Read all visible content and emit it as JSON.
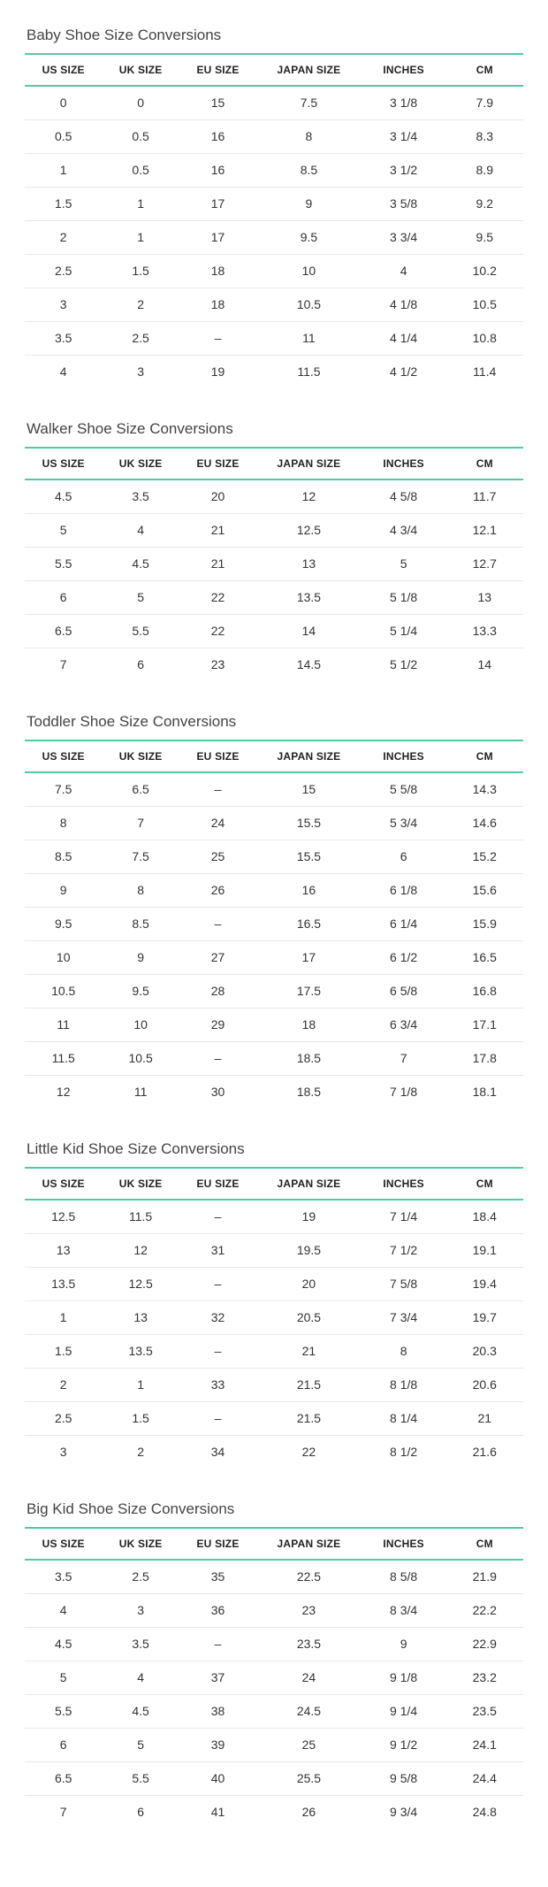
{
  "headers": [
    "US SIZE",
    "UK SIZE",
    "EU SIZE",
    "JAPAN SIZE",
    "INCHES",
    "CM"
  ],
  "sections": [
    {
      "title": "Baby Shoe Size Conversions",
      "rows": [
        [
          "0",
          "0",
          "15",
          "7.5",
          "3 1/8",
          "7.9"
        ],
        [
          "0.5",
          "0.5",
          "16",
          "8",
          "3 1/4",
          "8.3"
        ],
        [
          "1",
          "0.5",
          "16",
          "8.5",
          "3 1/2",
          "8.9"
        ],
        [
          "1.5",
          "1",
          "17",
          "9",
          "3 5/8",
          "9.2"
        ],
        [
          "2",
          "1",
          "17",
          "9.5",
          "3 3/4",
          "9.5"
        ],
        [
          "2.5",
          "1.5",
          "18",
          "10",
          "4",
          "10.2"
        ],
        [
          "3",
          "2",
          "18",
          "10.5",
          "4 1/8",
          "10.5"
        ],
        [
          "3.5",
          "2.5",
          "–",
          "11",
          "4 1/4",
          "10.8"
        ],
        [
          "4",
          "3",
          "19",
          "11.5",
          "4 1/2",
          "11.4"
        ]
      ]
    },
    {
      "title": "Walker Shoe Size Conversions",
      "rows": [
        [
          "4.5",
          "3.5",
          "20",
          "12",
          "4 5/8",
          "11.7"
        ],
        [
          "5",
          "4",
          "21",
          "12.5",
          "4 3/4",
          "12.1"
        ],
        [
          "5.5",
          "4.5",
          "21",
          "13",
          "5",
          "12.7"
        ],
        [
          "6",
          "5",
          "22",
          "13.5",
          "5 1/8",
          "13"
        ],
        [
          "6.5",
          "5.5",
          "22",
          "14",
          "5 1/4",
          "13.3"
        ],
        [
          "7",
          "6",
          "23",
          "14.5",
          "5 1/2",
          "14"
        ]
      ]
    },
    {
      "title": "Toddler Shoe Size Conversions",
      "rows": [
        [
          "7.5",
          "6.5",
          "–",
          "15",
          "5 5/8",
          "14.3"
        ],
        [
          "8",
          "7",
          "24",
          "15.5",
          "5 3/4",
          "14.6"
        ],
        [
          "8.5",
          "7.5",
          "25",
          "15.5",
          "6",
          "15.2"
        ],
        [
          "9",
          "8",
          "26",
          "16",
          "6 1/8",
          "15.6"
        ],
        [
          "9.5",
          "8.5",
          "–",
          "16.5",
          "6 1/4",
          "15.9"
        ],
        [
          "10",
          "9",
          "27",
          "17",
          "6 1/2",
          "16.5"
        ],
        [
          "10.5",
          "9.5",
          "28",
          "17.5",
          "6 5/8",
          "16.8"
        ],
        [
          "11",
          "10",
          "29",
          "18",
          "6 3/4",
          "17.1"
        ],
        [
          "11.5",
          "10.5",
          "–",
          "18.5",
          "7",
          "17.8"
        ],
        [
          "12",
          "11",
          "30",
          "18.5",
          "7 1/8",
          "18.1"
        ]
      ]
    },
    {
      "title": "Little Kid Shoe Size Conversions",
      "rows": [
        [
          "12.5",
          "11.5",
          "–",
          "19",
          "7 1/4",
          "18.4"
        ],
        [
          "13",
          "12",
          "31",
          "19.5",
          "7 1/2",
          "19.1"
        ],
        [
          "13.5",
          "12.5",
          "–",
          "20",
          "7 5/8",
          "19.4"
        ],
        [
          "1",
          "13",
          "32",
          "20.5",
          "7 3/4",
          "19.7"
        ],
        [
          "1.5",
          "13.5",
          "–",
          "21",
          "8",
          "20.3"
        ],
        [
          "2",
          "1",
          "33",
          "21.5",
          "8 1/8",
          "20.6"
        ],
        [
          "2.5",
          "1.5",
          "–",
          "21.5",
          "8 1/4",
          "21"
        ],
        [
          "3",
          "2",
          "34",
          "22",
          "8 1/2",
          "21.6"
        ]
      ]
    },
    {
      "title": "Big Kid Shoe Size Conversions",
      "rows": [
        [
          "3.5",
          "2.5",
          "35",
          "22.5",
          "8 5/8",
          "21.9"
        ],
        [
          "4",
          "3",
          "36",
          "23",
          "8 3/4",
          "22.2"
        ],
        [
          "4.5",
          "3.5",
          "–",
          "23.5",
          "9",
          "22.9"
        ],
        [
          "5",
          "4",
          "37",
          "24",
          "9 1/8",
          "23.2"
        ],
        [
          "5.5",
          "4.5",
          "38",
          "24.5",
          "9 1/4",
          "23.5"
        ],
        [
          "6",
          "5",
          "39",
          "25",
          "9 1/2",
          "24.1"
        ],
        [
          "6.5",
          "5.5",
          "40",
          "25.5",
          "9 5/8",
          "24.4"
        ],
        [
          "7",
          "6",
          "41",
          "26",
          "9 3/4",
          "24.8"
        ]
      ]
    }
  ]
}
